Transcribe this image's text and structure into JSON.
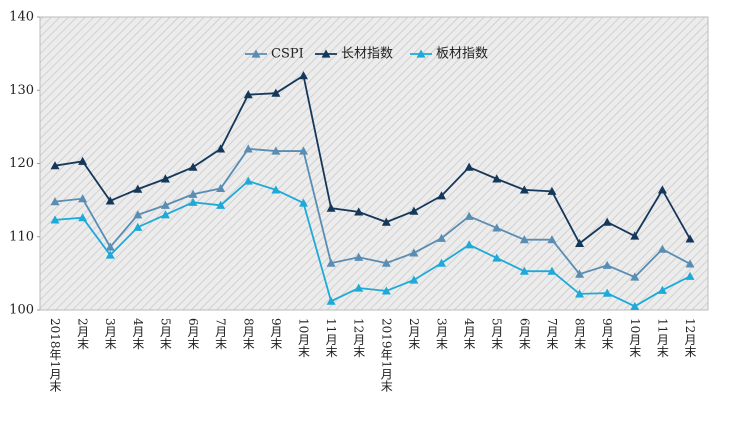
{
  "chart_data": {
    "type": "line",
    "categories": [
      "2018年1月末",
      "2月末",
      "3月末",
      "4月末",
      "5月末",
      "6月末",
      "7月末",
      "8月末",
      "9月末",
      "10月末",
      "11月末",
      "12月末",
      "2019年1月末",
      "2月末",
      "3月末",
      "4月末",
      "5月末",
      "6月末",
      "7月末",
      "8月末",
      "9月末",
      "10月末",
      "11月末",
      "12月末"
    ],
    "series": [
      {
        "name": "CSPI",
        "color": "#5a8db3",
        "values": [
          114.8,
          115.2,
          108.6,
          113.0,
          114.3,
          115.8,
          116.6,
          122.0,
          121.7,
          121.7,
          106.4,
          107.2,
          106.4,
          107.8,
          109.8,
          112.8,
          111.2,
          109.6,
          109.6,
          104.9,
          106.1,
          104.5,
          108.3,
          106.3
        ]
      },
      {
        "name": "长材指数",
        "color": "#15385a",
        "values": [
          119.7,
          120.3,
          114.9,
          116.5,
          117.9,
          119.5,
          122.0,
          129.4,
          129.6,
          132.0,
          113.9,
          113.4,
          112.0,
          113.5,
          115.6,
          119.5,
          117.9,
          116.4,
          116.2,
          109.1,
          112.0,
          110.1,
          116.4,
          109.7
        ]
      },
      {
        "name": "板材指数",
        "color": "#1eaad8",
        "values": [
          112.3,
          112.6,
          107.5,
          111.3,
          113.0,
          114.7,
          114.3,
          117.6,
          116.4,
          114.6,
          101.2,
          103.0,
          102.6,
          104.1,
          106.4,
          108.9,
          107.1,
          105.3,
          105.3,
          102.2,
          102.3,
          100.5,
          102.7,
          104.6
        ]
      }
    ],
    "ylim": [
      100,
      140
    ],
    "yticks": [
      100,
      110,
      120,
      130,
      140
    ],
    "legend": "top"
  }
}
